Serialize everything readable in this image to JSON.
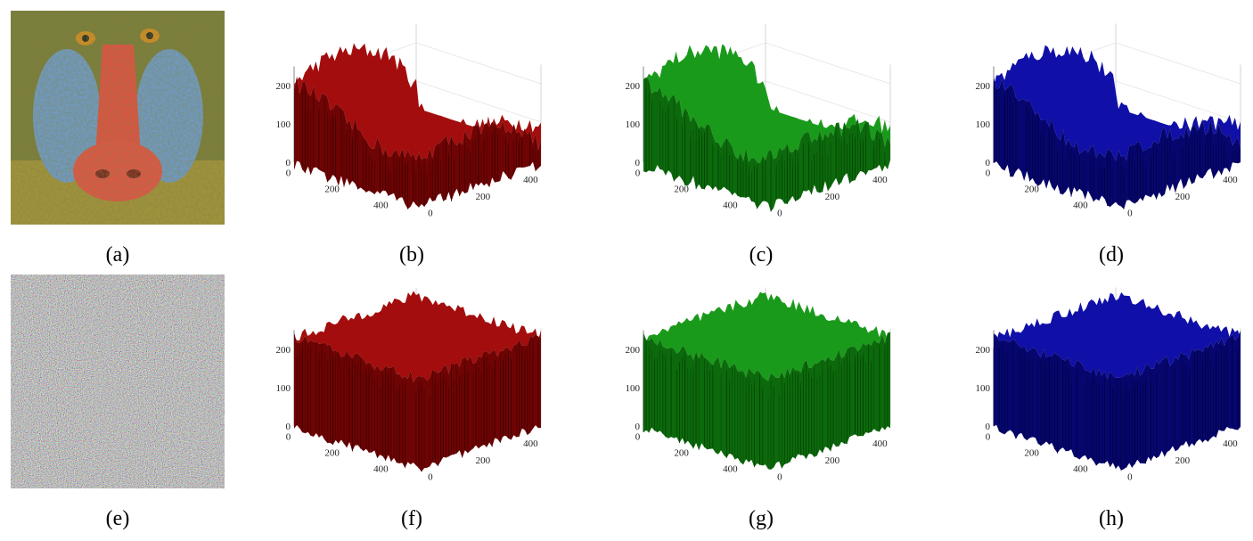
{
  "panels": [
    {
      "label": "(a)"
    },
    {
      "label": "(b)"
    },
    {
      "label": "(c)"
    },
    {
      "label": "(d)"
    },
    {
      "label": "(e)"
    },
    {
      "label": "(f)"
    },
    {
      "label": "(g)"
    },
    {
      "label": "(h)"
    }
  ],
  "axes": {
    "z_ticks": [
      "0",
      "100",
      "200"
    ],
    "x_ticks": [
      "0",
      "200",
      "400"
    ],
    "y_ticks": [
      "0",
      "200",
      "400"
    ]
  }
}
